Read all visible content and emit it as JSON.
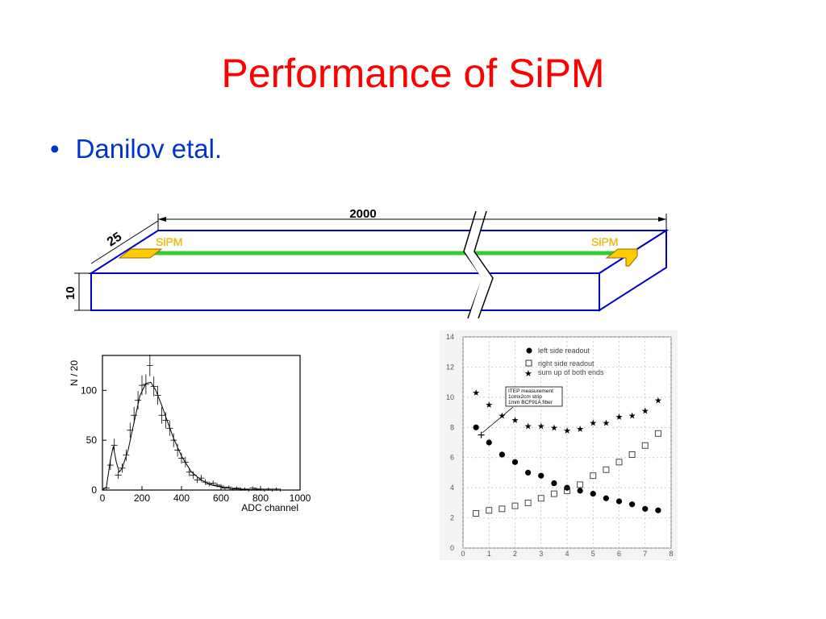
{
  "slide": {
    "title": "Performance of SiPM",
    "bullet": "Danilov etal."
  },
  "strip_diagram": {
    "length_label": "2000",
    "width_label": "25",
    "height_label": "10",
    "sipm_left": "SiPM",
    "sipm_right": "SiPM"
  },
  "chart_data": [
    {
      "type": "scatter",
      "ylabel": "N / 20",
      "xlabel": "ADC channel",
      "xlim": [
        0,
        1000
      ],
      "ylim": [
        0,
        135
      ],
      "xticks": [
        "0",
        "200",
        "400",
        "600",
        "800",
        "1000"
      ],
      "yticks": [
        "0",
        "50",
        "100"
      ],
      "series": [
        {
          "x": [
            20,
            40,
            60,
            80,
            100,
            120,
            140,
            160,
            180,
            200,
            220,
            240,
            260,
            280,
            300,
            320,
            340,
            360,
            380,
            400,
            420,
            440,
            460,
            480,
            500,
            520,
            540,
            560,
            580,
            600,
            620,
            640,
            660,
            680,
            700,
            720,
            740,
            760,
            780,
            800,
            820,
            840,
            860,
            880,
            900
          ],
          "y": [
            2,
            25,
            45,
            15,
            22,
            35,
            60,
            75,
            90,
            105,
            106,
            125,
            104,
            95,
            75,
            70,
            62,
            50,
            40,
            32,
            28,
            18,
            15,
            10,
            12,
            8,
            6,
            7,
            5,
            4,
            2,
            3,
            1,
            2,
            1,
            1,
            0,
            2,
            1,
            1,
            0,
            1,
            0,
            1,
            0
          ]
        }
      ],
      "fit": {
        "x": [
          0,
          20,
          40,
          55,
          70,
          85,
          100,
          130,
          160,
          190,
          220,
          245,
          270,
          300,
          330,
          360,
          400,
          450,
          500,
          550,
          600,
          650,
          700,
          800,
          900
        ],
        "y": [
          0,
          3,
          30,
          44,
          28,
          18,
          22,
          40,
          68,
          95,
          107,
          108,
          100,
          85,
          68,
          52,
          34,
          18,
          10,
          5,
          3,
          1.5,
          0.8,
          0.2,
          0
        ]
      }
    },
    {
      "type": "scatter",
      "xlim": [
        0,
        8
      ],
      "ylim": [
        0,
        14
      ],
      "xticks": [
        "0",
        "1",
        "2",
        "3",
        "4",
        "5",
        "6",
        "7",
        "8"
      ],
      "yticks": [
        "0",
        "2",
        "4",
        "6",
        "8",
        "10",
        "12",
        "14"
      ],
      "legend": [
        "left side readout",
        "right side readout",
        "sum up of both ends"
      ],
      "legend_position": "top-right",
      "annotation": [
        "ITEP measurement",
        "1cmx2cm strip",
        "1mm BCF91A fiber"
      ],
      "series": [
        {
          "name": "left side readout",
          "marker": "filled-circle",
          "x": [
            0.5,
            1.0,
            1.5,
            2.0,
            2.5,
            3.0,
            3.5,
            4.0,
            4.5,
            5.0,
            5.5,
            6.0,
            6.5,
            7.0,
            7.5
          ],
          "y": [
            8.0,
            7.0,
            6.2,
            5.7,
            5.0,
            4.8,
            4.3,
            4.0,
            3.8,
            3.6,
            3.3,
            3.1,
            2.9,
            2.6,
            2.5
          ]
        },
        {
          "name": "right side readout",
          "marker": "open-square",
          "x": [
            0.5,
            1.0,
            1.5,
            2.0,
            2.5,
            3.0,
            3.5,
            4.0,
            4.5,
            5.0,
            5.5,
            6.0,
            6.5,
            7.0,
            7.5
          ],
          "y": [
            2.3,
            2.5,
            2.6,
            2.8,
            3.0,
            3.3,
            3.6,
            3.8,
            4.2,
            4.8,
            5.2,
            5.7,
            6.2,
            6.8,
            7.6
          ]
        },
        {
          "name": "sum up of both ends",
          "marker": "star",
          "x": [
            0.5,
            1.0,
            1.5,
            2.0,
            2.5,
            3.0,
            3.5,
            4.0,
            4.5,
            5.0,
            5.5,
            6.0,
            6.5,
            7.0,
            7.5
          ],
          "y": [
            10.3,
            9.5,
            8.8,
            8.5,
            8.1,
            8.1,
            8.0,
            7.8,
            7.9,
            8.3,
            8.3,
            8.7,
            8.8,
            9.1,
            9.8
          ]
        }
      ]
    }
  ]
}
